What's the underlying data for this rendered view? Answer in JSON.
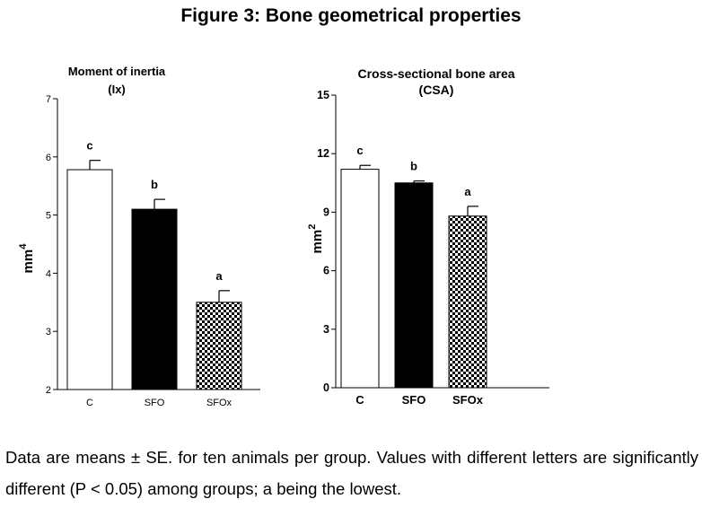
{
  "figure": {
    "title": "Figure 3: Bone geometrical properties",
    "caption": "Data are means ± SE. for ten animals per group. Values with different letters are significantly different (P < 0.05) among groups; a being the lowest."
  },
  "chart_data": [
    {
      "type": "bar",
      "title": "Moment of inertia",
      "subtitle": "(Ix)",
      "ylabel": "mm",
      "ylabel_sup": "4",
      "xlabel": "",
      "categories": [
        "C",
        "SFO",
        "SFOx"
      ],
      "values": [
        5.78,
        5.1,
        3.5
      ],
      "errors": [
        0.16,
        0.17,
        0.2
      ],
      "letters": [
        "c",
        "b",
        "a"
      ],
      "ylim": [
        2,
        7
      ],
      "yticks": [
        2,
        3,
        4,
        5,
        6,
        7
      ],
      "grid": false,
      "fills": [
        "white",
        "black",
        "checker"
      ]
    },
    {
      "type": "bar",
      "title": "Cross-sectional bone area",
      "subtitle": "(CSA)",
      "ylabel": "mm",
      "ylabel_sup": "2",
      "xlabel": "",
      "categories": [
        "C",
        "SFO",
        "SFOx"
      ],
      "values": [
        11.2,
        10.5,
        8.8
      ],
      "errors": [
        0.2,
        0.1,
        0.5
      ],
      "letters": [
        "c",
        "b",
        "a"
      ],
      "ylim": [
        0,
        15
      ],
      "yticks": [
        0,
        3,
        6,
        9,
        12,
        15
      ],
      "grid": false,
      "fills": [
        "white",
        "black",
        "checker"
      ]
    }
  ]
}
